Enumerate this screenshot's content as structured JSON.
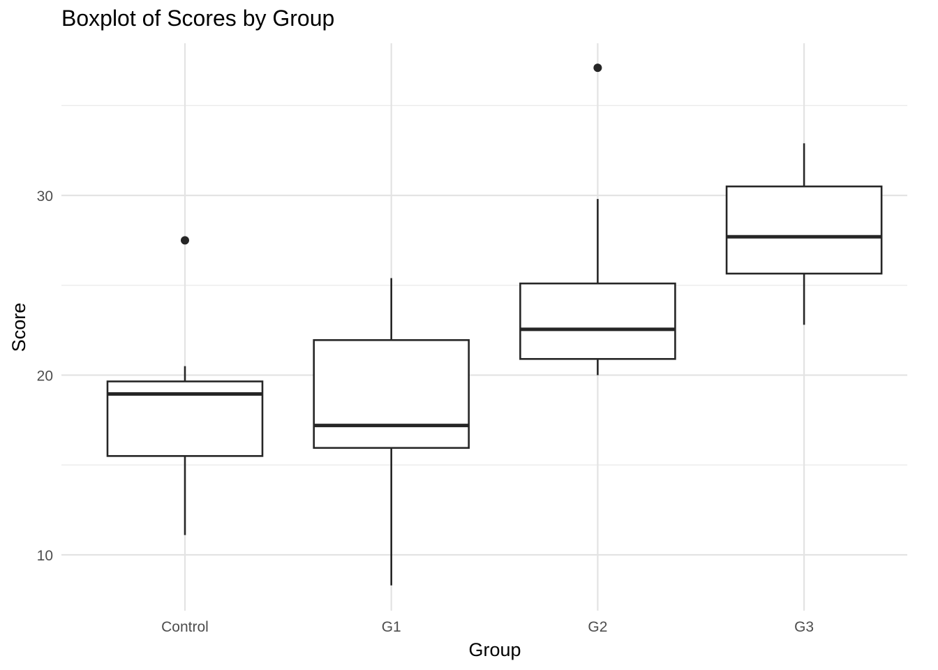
{
  "chart_data": {
    "type": "boxplot",
    "title": "Boxplot of Scores by Group",
    "xlabel": "Group",
    "ylabel": "Score",
    "categories": [
      "Control",
      "G1",
      "G2",
      "G3"
    ],
    "boxes": [
      {
        "group": "Control",
        "whisker_low": 11.1,
        "q1": 15.5,
        "median": 18.95,
        "q3": 19.65,
        "whisker_high": 20.5,
        "outliers": [
          27.5
        ]
      },
      {
        "group": "G1",
        "whisker_low": 8.3,
        "q1": 15.95,
        "median": 17.2,
        "q3": 21.95,
        "whisker_high": 25.4,
        "outliers": []
      },
      {
        "group": "G2",
        "whisker_low": 20.0,
        "q1": 20.9,
        "median": 22.55,
        "q3": 25.1,
        "whisker_high": 29.8,
        "outliers": [
          37.1
        ]
      },
      {
        "group": "G3",
        "whisker_low": 22.8,
        "q1": 25.65,
        "median": 27.7,
        "q3": 30.5,
        "whisker_high": 32.9,
        "outliers": []
      }
    ],
    "y_ticks": [
      10,
      20,
      30
    ],
    "ylim": [
      6.5,
      38.5
    ],
    "grid": true,
    "legend": "none"
  }
}
